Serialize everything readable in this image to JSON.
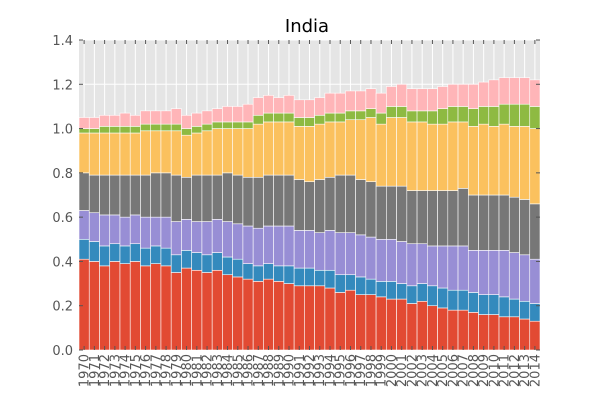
{
  "chart_data": {
    "type": "bar",
    "stacked": true,
    "title": "India",
    "xlabel": "",
    "ylabel": "",
    "ylim": [
      0,
      1.4
    ],
    "yticks": [
      "0.0",
      "0.2",
      "0.4",
      "0.6",
      "0.8",
      "1.0",
      "1.2",
      "1.4"
    ],
    "grid": true,
    "legend": "none",
    "background_color": "#E5E5E5",
    "categories": [
      "1970",
      "1971",
      "1972",
      "1973",
      "1974",
      "1975",
      "1976",
      "1977",
      "1978",
      "1979",
      "1980",
      "1981",
      "1982",
      "1983",
      "1984",
      "1985",
      "1986",
      "1987",
      "1988",
      "1989",
      "1990",
      "1991",
      "1992",
      "1993",
      "1994",
      "1995",
      "1996",
      "1997",
      "1998",
      "1999",
      "2000",
      "2001",
      "2002",
      "2003",
      "2004",
      "2005",
      "2006",
      "2007",
      "2008",
      "2009",
      "2010",
      "2011",
      "2012",
      "2013",
      "2014"
    ],
    "series": [
      {
        "color": "#E24A33",
        "values": [
          0.41,
          0.4,
          0.38,
          0.4,
          0.39,
          0.4,
          0.38,
          0.39,
          0.38,
          0.35,
          0.37,
          0.36,
          0.35,
          0.36,
          0.34,
          0.33,
          0.32,
          0.31,
          0.32,
          0.31,
          0.3,
          0.29,
          0.29,
          0.29,
          0.28,
          0.26,
          0.27,
          0.25,
          0.25,
          0.24,
          0.23,
          0.23,
          0.21,
          0.22,
          0.2,
          0.19,
          0.18,
          0.18,
          0.17,
          0.16,
          0.16,
          0.15,
          0.15,
          0.14,
          0.13
        ]
      },
      {
        "color": "#348ABD",
        "values": [
          0.09,
          0.09,
          0.09,
          0.08,
          0.08,
          0.08,
          0.08,
          0.08,
          0.08,
          0.08,
          0.08,
          0.08,
          0.08,
          0.08,
          0.08,
          0.08,
          0.07,
          0.07,
          0.07,
          0.07,
          0.08,
          0.08,
          0.08,
          0.07,
          0.08,
          0.08,
          0.07,
          0.08,
          0.07,
          0.07,
          0.08,
          0.07,
          0.08,
          0.08,
          0.09,
          0.09,
          0.09,
          0.09,
          0.09,
          0.09,
          0.09,
          0.09,
          0.08,
          0.08,
          0.08
        ]
      },
      {
        "color": "#988ED5",
        "values": [
          0.13,
          0.13,
          0.14,
          0.13,
          0.13,
          0.13,
          0.14,
          0.13,
          0.14,
          0.15,
          0.14,
          0.14,
          0.15,
          0.15,
          0.16,
          0.16,
          0.17,
          0.17,
          0.17,
          0.18,
          0.18,
          0.17,
          0.17,
          0.17,
          0.18,
          0.19,
          0.19,
          0.19,
          0.19,
          0.19,
          0.19,
          0.19,
          0.19,
          0.18,
          0.18,
          0.19,
          0.2,
          0.2,
          0.19,
          0.2,
          0.2,
          0.21,
          0.21,
          0.21,
          0.2
        ]
      },
      {
        "color": "#777777",
        "values": [
          0.17,
          0.17,
          0.18,
          0.18,
          0.19,
          0.18,
          0.19,
          0.2,
          0.2,
          0.21,
          0.19,
          0.21,
          0.21,
          0.2,
          0.22,
          0.22,
          0.22,
          0.23,
          0.23,
          0.23,
          0.23,
          0.23,
          0.22,
          0.24,
          0.24,
          0.26,
          0.26,
          0.25,
          0.25,
          0.24,
          0.24,
          0.25,
          0.24,
          0.24,
          0.25,
          0.25,
          0.25,
          0.26,
          0.25,
          0.25,
          0.25,
          0.25,
          0.25,
          0.25,
          0.25
        ]
      },
      {
        "color": "#FBC15E",
        "values": [
          0.18,
          0.19,
          0.19,
          0.19,
          0.19,
          0.19,
          0.2,
          0.19,
          0.19,
          0.2,
          0.19,
          0.19,
          0.2,
          0.21,
          0.2,
          0.21,
          0.22,
          0.24,
          0.24,
          0.24,
          0.24,
          0.24,
          0.25,
          0.25,
          0.25,
          0.24,
          0.25,
          0.27,
          0.29,
          0.28,
          0.31,
          0.31,
          0.31,
          0.31,
          0.3,
          0.3,
          0.31,
          0.3,
          0.31,
          0.32,
          0.31,
          0.32,
          0.32,
          0.33,
          0.34
        ]
      },
      {
        "color": "#8EBA42",
        "values": [
          0.02,
          0.02,
          0.03,
          0.03,
          0.03,
          0.03,
          0.03,
          0.03,
          0.03,
          0.03,
          0.03,
          0.03,
          0.03,
          0.03,
          0.03,
          0.03,
          0.03,
          0.04,
          0.04,
          0.04,
          0.04,
          0.04,
          0.04,
          0.04,
          0.04,
          0.04,
          0.04,
          0.04,
          0.04,
          0.05,
          0.05,
          0.05,
          0.05,
          0.05,
          0.06,
          0.07,
          0.07,
          0.07,
          0.08,
          0.08,
          0.09,
          0.09,
          0.1,
          0.1,
          0.1
        ]
      },
      {
        "color": "#FFB5B8",
        "values": [
          0.05,
          0.05,
          0.05,
          0.05,
          0.06,
          0.05,
          0.06,
          0.06,
          0.06,
          0.07,
          0.06,
          0.06,
          0.06,
          0.06,
          0.07,
          0.07,
          0.08,
          0.08,
          0.08,
          0.07,
          0.08,
          0.08,
          0.08,
          0.08,
          0.09,
          0.09,
          0.09,
          0.09,
          0.09,
          0.09,
          0.09,
          0.1,
          0.1,
          0.1,
          0.1,
          0.1,
          0.1,
          0.1,
          0.11,
          0.11,
          0.12,
          0.12,
          0.12,
          0.12,
          0.12
        ]
      }
    ]
  }
}
